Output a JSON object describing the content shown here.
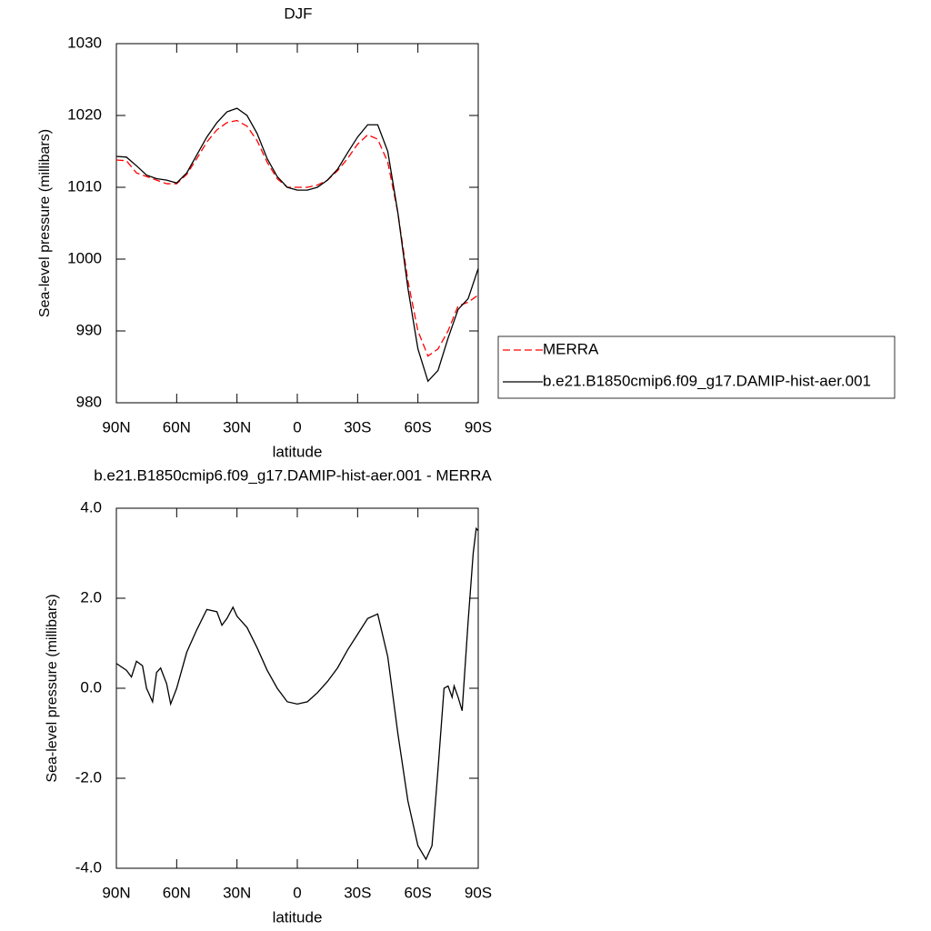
{
  "chart_data": [
    {
      "type": "line",
      "title": "DJF",
      "xlabel": "latitude",
      "ylabel": "Sea-level pressure (millibars)",
      "x": [
        90,
        85,
        80,
        75,
        70,
        65,
        60,
        55,
        50,
        45,
        40,
        35,
        30,
        25,
        20,
        15,
        10,
        5,
        0,
        -5,
        -10,
        -15,
        -20,
        -25,
        -30,
        -35,
        -40,
        -45,
        -50,
        -55,
        -60,
        -65,
        -70,
        -75,
        -80,
        -85,
        -90
      ],
      "series": [
        {
          "name": "MERRA",
          "color": "#ff0000",
          "line_style": "dashed",
          "values": [
            1013.8,
            1013.7,
            1012,
            1011.5,
            1011,
            1010.5,
            1010.5,
            1011.8,
            1014,
            1016.3,
            1018,
            1019,
            1019.3,
            1018.5,
            1016.5,
            1013.5,
            1011.2,
            1010,
            1010,
            1010,
            1010.3,
            1011,
            1012.3,
            1014,
            1016,
            1017.3,
            1016.7,
            1013.5,
            1006.5,
            997,
            990,
            986.5,
            987.5,
            990,
            993.5,
            994,
            995
          ]
        },
        {
          "name": "b.e21.B1850cmip6.f09_g17.DAMIP-hist-aer.001",
          "color": "#000000",
          "line_style": "solid",
          "values": [
            1014.3,
            1014.2,
            1013,
            1011.7,
            1011.2,
            1011,
            1010.6,
            1012,
            1014.5,
            1017,
            1019,
            1020.5,
            1021,
            1020,
            1017.5,
            1014,
            1011.5,
            1010,
            1009.6,
            1009.6,
            1010,
            1011,
            1012.5,
            1014.8,
            1017,
            1018.7,
            1018.7,
            1015,
            1006.5,
            996,
            987.5,
            983,
            984.5,
            989,
            993,
            994.5,
            998.7
          ]
        }
      ],
      "xlim": [
        90,
        -90
      ],
      "xticks": [
        {
          "value": 90,
          "label": "90N"
        },
        {
          "value": 60,
          "label": "60N"
        },
        {
          "value": 30,
          "label": "30N"
        },
        0,
        {
          "value": -30,
          "label": "30S"
        },
        {
          "value": -60,
          "label": "60S"
        },
        {
          "value": -90,
          "label": "90S"
        }
      ],
      "ylim": [
        980,
        1030
      ],
      "yticks": [
        980,
        990,
        1000,
        1010,
        1020,
        1030
      ],
      "legend": "right"
    },
    {
      "type": "line",
      "title": "b.e21.B1850cmip6.f09_g17.DAMIP-hist-aer.001 - MERRA",
      "xlabel": "latitude",
      "ylabel": "Sea-level pressure (millibars)",
      "x": [
        90,
        85,
        82.5,
        80,
        77,
        75,
        72,
        70,
        68,
        65,
        63,
        60,
        55,
        50,
        45,
        40,
        37.5,
        35,
        32,
        30,
        25,
        20,
        15,
        10,
        5,
        0,
        -5,
        -10,
        -15,
        -20,
        -25,
        -30,
        -35,
        -40,
        -45,
        -50,
        -55,
        -60,
        -64,
        -67,
        -70,
        -73,
        -75,
        -77,
        -78,
        -80,
        -82,
        -85,
        -87.5,
        -89,
        -90
      ],
      "values": [
        0.55,
        0.4,
        0.25,
        0.6,
        0.5,
        0.0,
        -0.3,
        0.35,
        0.45,
        0.1,
        -0.35,
        0.0,
        0.8,
        1.3,
        1.75,
        1.7,
        1.4,
        1.55,
        1.8,
        1.6,
        1.35,
        0.9,
        0.4,
        0.0,
        -0.3,
        -0.35,
        -0.3,
        -0.1,
        0.15,
        0.45,
        0.85,
        1.2,
        1.55,
        1.65,
        0.7,
        -1.0,
        -2.5,
        -3.5,
        -3.8,
        -3.5,
        -1.8,
        0.0,
        0.05,
        -0.2,
        0.05,
        -0.2,
        -0.5,
        1.5,
        3.0,
        3.55,
        3.5
      ],
      "color": "#000000",
      "xlim": [
        90,
        -90
      ],
      "xticks": [
        {
          "value": 90,
          "label": "90N"
        },
        {
          "value": 60,
          "label": "60N"
        },
        {
          "value": 30,
          "label": "30N"
        },
        0,
        {
          "value": -30,
          "label": "30S"
        },
        {
          "value": -60,
          "label": "60S"
        },
        {
          "value": -90,
          "label": "90S"
        }
      ],
      "ylim": [
        -4,
        4
      ],
      "yticks": [
        {
          "value": -4,
          "label": "-4.0"
        },
        {
          "value": -2,
          "label": "-2.0"
        },
        {
          "value": 0,
          "label": "0.0"
        },
        {
          "value": 2,
          "label": "2.0"
        },
        {
          "value": 4,
          "label": "4.0"
        }
      ]
    }
  ]
}
